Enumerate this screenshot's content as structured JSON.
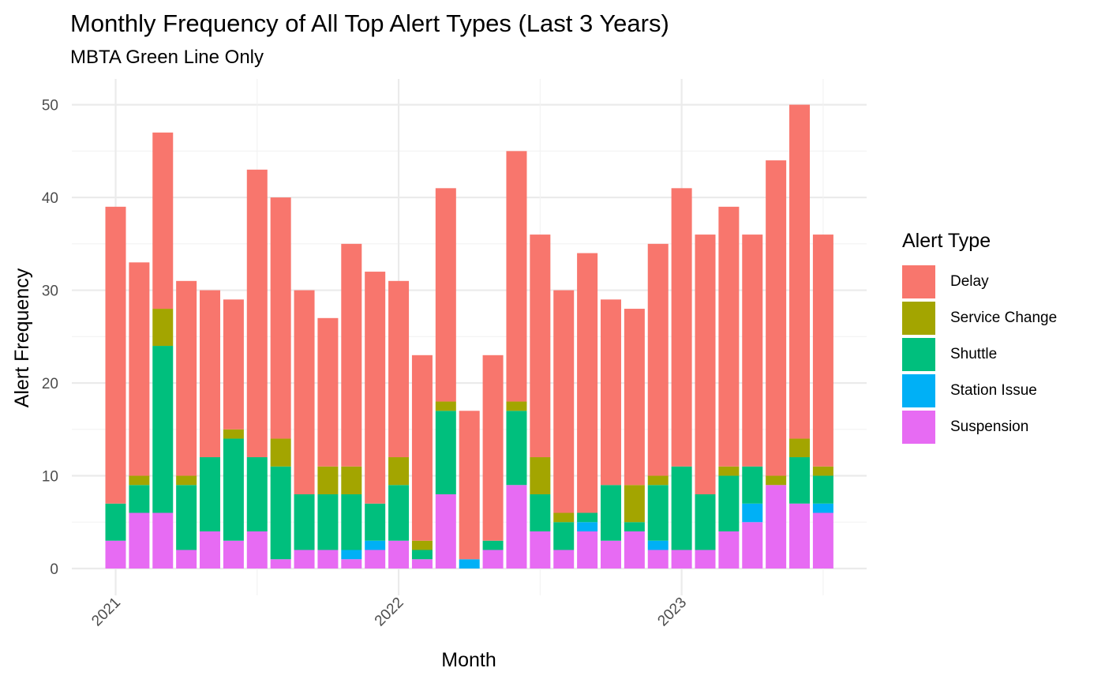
{
  "chart_data": {
    "type": "bar",
    "stacked": true,
    "title": "Monthly Frequency of All Top Alert Types (Last 3 Years)",
    "subtitle": "MBTA Green Line Only",
    "xlabel": "Month",
    "ylabel": "Alert Frequency",
    "ylim": [
      0,
      52
    ],
    "y_ticks": [
      0,
      10,
      20,
      30,
      40,
      50
    ],
    "x_ticks": [
      "2021",
      "2022",
      "2023"
    ],
    "grid": true,
    "legend_title": "Alert Type",
    "legend_position": "right",
    "categories": [
      "2021-01",
      "2021-02",
      "2021-03",
      "2021-04",
      "2021-05",
      "2021-06",
      "2021-07",
      "2021-08",
      "2021-09",
      "2021-10",
      "2021-11",
      "2021-12",
      "2022-01",
      "2022-02",
      "2022-03",
      "2022-04",
      "2022-05",
      "2022-06",
      "2022-07",
      "2022-08",
      "2022-09",
      "2022-10",
      "2022-11",
      "2022-12",
      "2023-01",
      "2023-02",
      "2023-03",
      "2023-04",
      "2023-05",
      "2023-06",
      "2023-07"
    ],
    "series": [
      {
        "name": "Suspension",
        "color": "#E76BF3",
        "values": [
          3,
          6,
          6,
          2,
          4,
          3,
          4,
          1,
          2,
          2,
          1,
          2,
          3,
          1,
          8,
          0,
          2,
          9,
          4,
          2,
          4,
          3,
          4,
          2,
          2,
          2,
          4,
          5,
          9,
          7,
          6
        ]
      },
      {
        "name": "Station Issue",
        "color": "#00B0F6",
        "values": [
          0,
          0,
          0,
          0,
          0,
          0,
          0,
          0,
          0,
          0,
          1,
          1,
          0,
          0,
          0,
          1,
          0,
          0,
          0,
          0,
          1,
          0,
          0,
          1,
          0,
          0,
          0,
          2,
          0,
          0,
          1
        ]
      },
      {
        "name": "Shuttle",
        "color": "#00BF7D",
        "values": [
          4,
          3,
          18,
          7,
          8,
          11,
          8,
          10,
          6,
          6,
          6,
          4,
          6,
          1,
          9,
          0,
          1,
          8,
          4,
          3,
          1,
          6,
          1,
          6,
          9,
          6,
          6,
          4,
          0,
          5,
          3
        ]
      },
      {
        "name": "Service Change",
        "color": "#A3A500",
        "values": [
          0,
          1,
          4,
          1,
          0,
          1,
          0,
          3,
          0,
          3,
          3,
          0,
          3,
          1,
          1,
          0,
          0,
          1,
          4,
          1,
          0,
          0,
          4,
          1,
          0,
          0,
          1,
          0,
          1,
          2,
          1
        ]
      },
      {
        "name": "Delay",
        "color": "#F8766D",
        "values": [
          32,
          23,
          19,
          21,
          18,
          14,
          31,
          26,
          22,
          16,
          24,
          25,
          19,
          20,
          23,
          16,
          20,
          27,
          24,
          24,
          28,
          20,
          19,
          25,
          30,
          28,
          28,
          25,
          34,
          36,
          25
        ]
      }
    ],
    "legend_order": [
      "Delay",
      "Service Change",
      "Shuttle",
      "Station Issue",
      "Suspension"
    ]
  }
}
